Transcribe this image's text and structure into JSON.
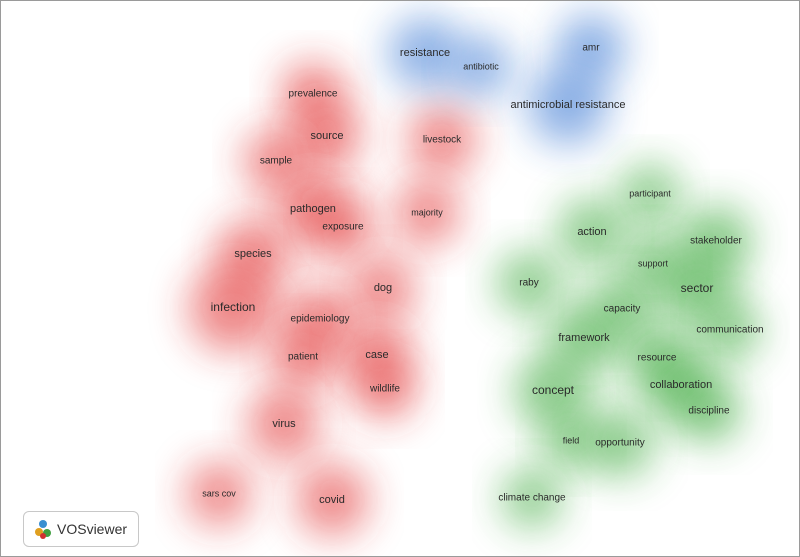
{
  "clusters": [
    {
      "color": "#e02828",
      "terms": [
        "prevalence",
        "source",
        "sample",
        "livestock",
        "pathogen",
        "exposure",
        "majority",
        "species",
        "dog",
        "infection",
        "epidemiology",
        "patient",
        "case",
        "wildlife",
        "virus",
        "sars cov",
        "covid"
      ]
    },
    {
      "color": "#2f6fd0",
      "terms": [
        "resistance",
        "antibiotic",
        "amr",
        "antimicrobial resistance"
      ]
    },
    {
      "color": "#2ea32e",
      "terms": [
        "participant",
        "action",
        "stakeholder",
        "support",
        "raby",
        "sector",
        "capacity",
        "communication",
        "framework",
        "resource",
        "concept",
        "collaboration",
        "discipline",
        "field",
        "opportunity",
        "climate change"
      ]
    }
  ],
  "logo": {
    "label": "VOSviewer"
  }
}
